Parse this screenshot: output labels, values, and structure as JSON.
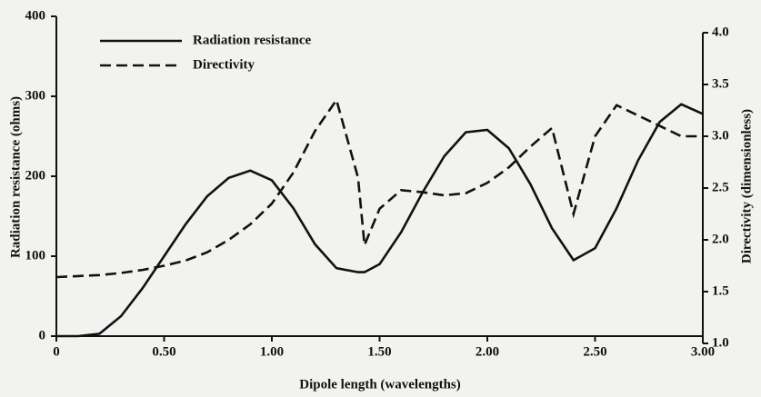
{
  "chart_data": {
    "type": "line",
    "x_label": "Dipole length (wavelengths)",
    "y_label": "Radiation resistance (ohms)",
    "y2_label": "Directivity (dimensionless)",
    "x": [
      0,
      0.1,
      0.2,
      0.3,
      0.4,
      0.5,
      0.6,
      0.7,
      0.8,
      0.9,
      1.0,
      1.1,
      1.2,
      1.3,
      1.4,
      1.43,
      1.5,
      1.6,
      1.7,
      1.8,
      1.9,
      2.0,
      2.1,
      2.2,
      2.3,
      2.4,
      2.5,
      2.6,
      2.7,
      2.8,
      2.9,
      3.0
    ],
    "series": [
      {
        "name": "Radiation resistance",
        "color": "#111111",
        "line_style": "solid",
        "values": [
          0,
          0,
          3,
          25,
          60,
          100,
          140,
          175,
          198,
          207,
          195,
          160,
          115,
          85,
          80,
          80,
          90,
          130,
          180,
          225,
          255,
          258,
          235,
          190,
          135,
          95,
          110,
          160,
          220,
          268,
          290,
          278
        ]
      },
      {
        "name": "Directivity",
        "color": "#111111",
        "line_style": "dashed",
        "axis": "y2",
        "values": [
          1.64,
          1.65,
          1.66,
          1.68,
          1.71,
          1.75,
          1.8,
          1.88,
          2.0,
          2.15,
          2.35,
          2.65,
          3.05,
          3.35,
          2.6,
          1.95,
          2.3,
          2.48,
          2.46,
          2.43,
          2.45,
          2.55,
          2.7,
          2.9,
          3.08,
          2.25,
          3.0,
          3.3,
          3.2,
          3.1,
          3.0,
          3.0
        ]
      }
    ],
    "xlim": [
      0,
      3
    ],
    "xticks": [
      0,
      {
        "value": 0.5,
        "label": "0.50"
      },
      {
        "value": 1,
        "label": "1.00"
      },
      {
        "value": 1.5,
        "label": "1.50"
      },
      {
        "value": 2,
        "label": "2.00"
      },
      {
        "value": 2.5,
        "label": "2.50"
      },
      {
        "value": 3,
        "label": "3.00"
      }
    ],
    "ylim": [
      0,
      400
    ],
    "yticks": [
      0,
      100,
      200,
      300,
      400
    ],
    "y2lim": [
      1,
      4
    ],
    "y2ticks": [
      {
        "value": 1,
        "label": "1.0"
      },
      1.5,
      {
        "value": 2,
        "label": "2.0"
      },
      2.5,
      {
        "value": 3,
        "label": "3.0"
      },
      3.5,
      {
        "value": 4,
        "label": "4.0"
      }
    ],
    "legend": "upper left"
  }
}
